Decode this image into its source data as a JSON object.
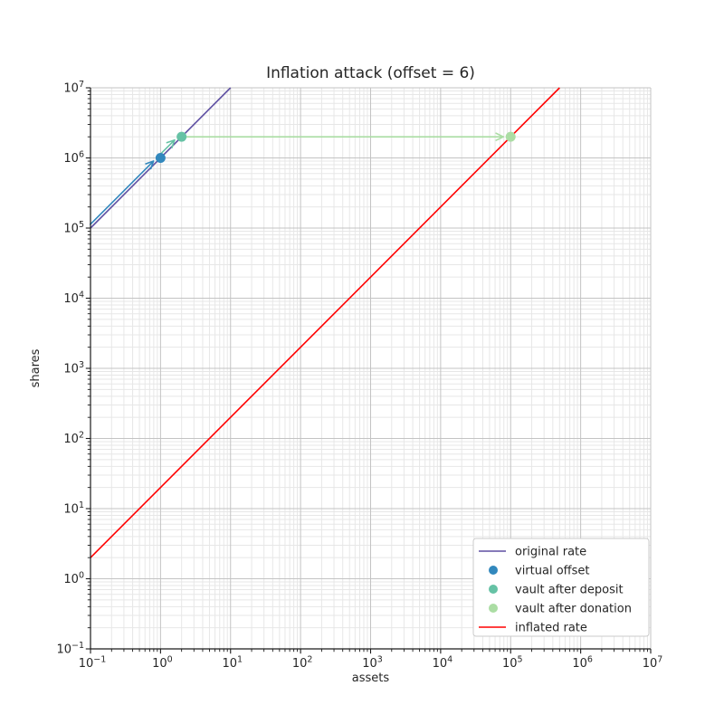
{
  "chart_data": {
    "type": "line",
    "title": "Inflation attack (offset = 6)",
    "xlabel": "assets",
    "ylabel": "shares",
    "xscale": "log",
    "yscale": "log",
    "xlim": [
      0.1,
      10000000
    ],
    "ylim": [
      0.1,
      10000000
    ],
    "tick_base": "10",
    "x_tick_exponents": [
      -1,
      0,
      1,
      2,
      3,
      4,
      5,
      6,
      7
    ],
    "y_tick_exponents": [
      -1,
      0,
      1,
      2,
      3,
      4,
      5,
      6,
      7
    ],
    "grid": {
      "major": true,
      "minor": true,
      "major_color": "#c3c3c3",
      "minor_color": "#e7e7e7"
    },
    "axis_color": "#1a1a1a",
    "text_color": "#262626",
    "series": [
      {
        "name": "original rate",
        "kind": "line",
        "color": "#5e4fa2",
        "points": [
          [
            0.1,
            100000
          ],
          [
            10,
            10000000
          ]
        ]
      },
      {
        "name": "virtual offset",
        "kind": "scatter",
        "color": "#3288bd",
        "points": [
          [
            1,
            1000000
          ]
        ]
      },
      {
        "name": "vault after deposit",
        "kind": "scatter",
        "color": "#66c2a5",
        "points": [
          [
            2,
            2000000
          ]
        ]
      },
      {
        "name": "vault after donation",
        "kind": "scatter",
        "color": "#abdda4",
        "points": [
          [
            100000,
            2000000
          ]
        ]
      },
      {
        "name": "inflated rate",
        "kind": "line",
        "color": "#ff0000",
        "points": [
          [
            0.1,
            2
          ],
          [
            500000,
            10000000
          ]
        ]
      }
    ],
    "arrows": [
      {
        "name": "offset arrow",
        "from": [
          0.1,
          100000
        ],
        "to": [
          1,
          1000000
        ],
        "color": "#3288bd"
      },
      {
        "name": "deposit arrow",
        "from": [
          1,
          1000000
        ],
        "to": [
          2,
          2000000
        ],
        "color": "#66c2a5"
      },
      {
        "name": "donation arrow",
        "from": [
          2,
          2000000
        ],
        "to": [
          100000,
          2000000
        ],
        "color": "#abdda4"
      }
    ],
    "legend": {
      "position": "lower right",
      "entries": [
        {
          "label": "original rate",
          "marker": "line",
          "color": "#5e4fa2"
        },
        {
          "label": "virtual offset",
          "marker": "dot",
          "color": "#3288bd"
        },
        {
          "label": "vault after deposit",
          "marker": "dot",
          "color": "#66c2a5"
        },
        {
          "label": "vault after donation",
          "marker": "dot",
          "color": "#abdda4"
        },
        {
          "label": "inflated rate",
          "marker": "line",
          "color": "#ff0000"
        }
      ]
    }
  }
}
